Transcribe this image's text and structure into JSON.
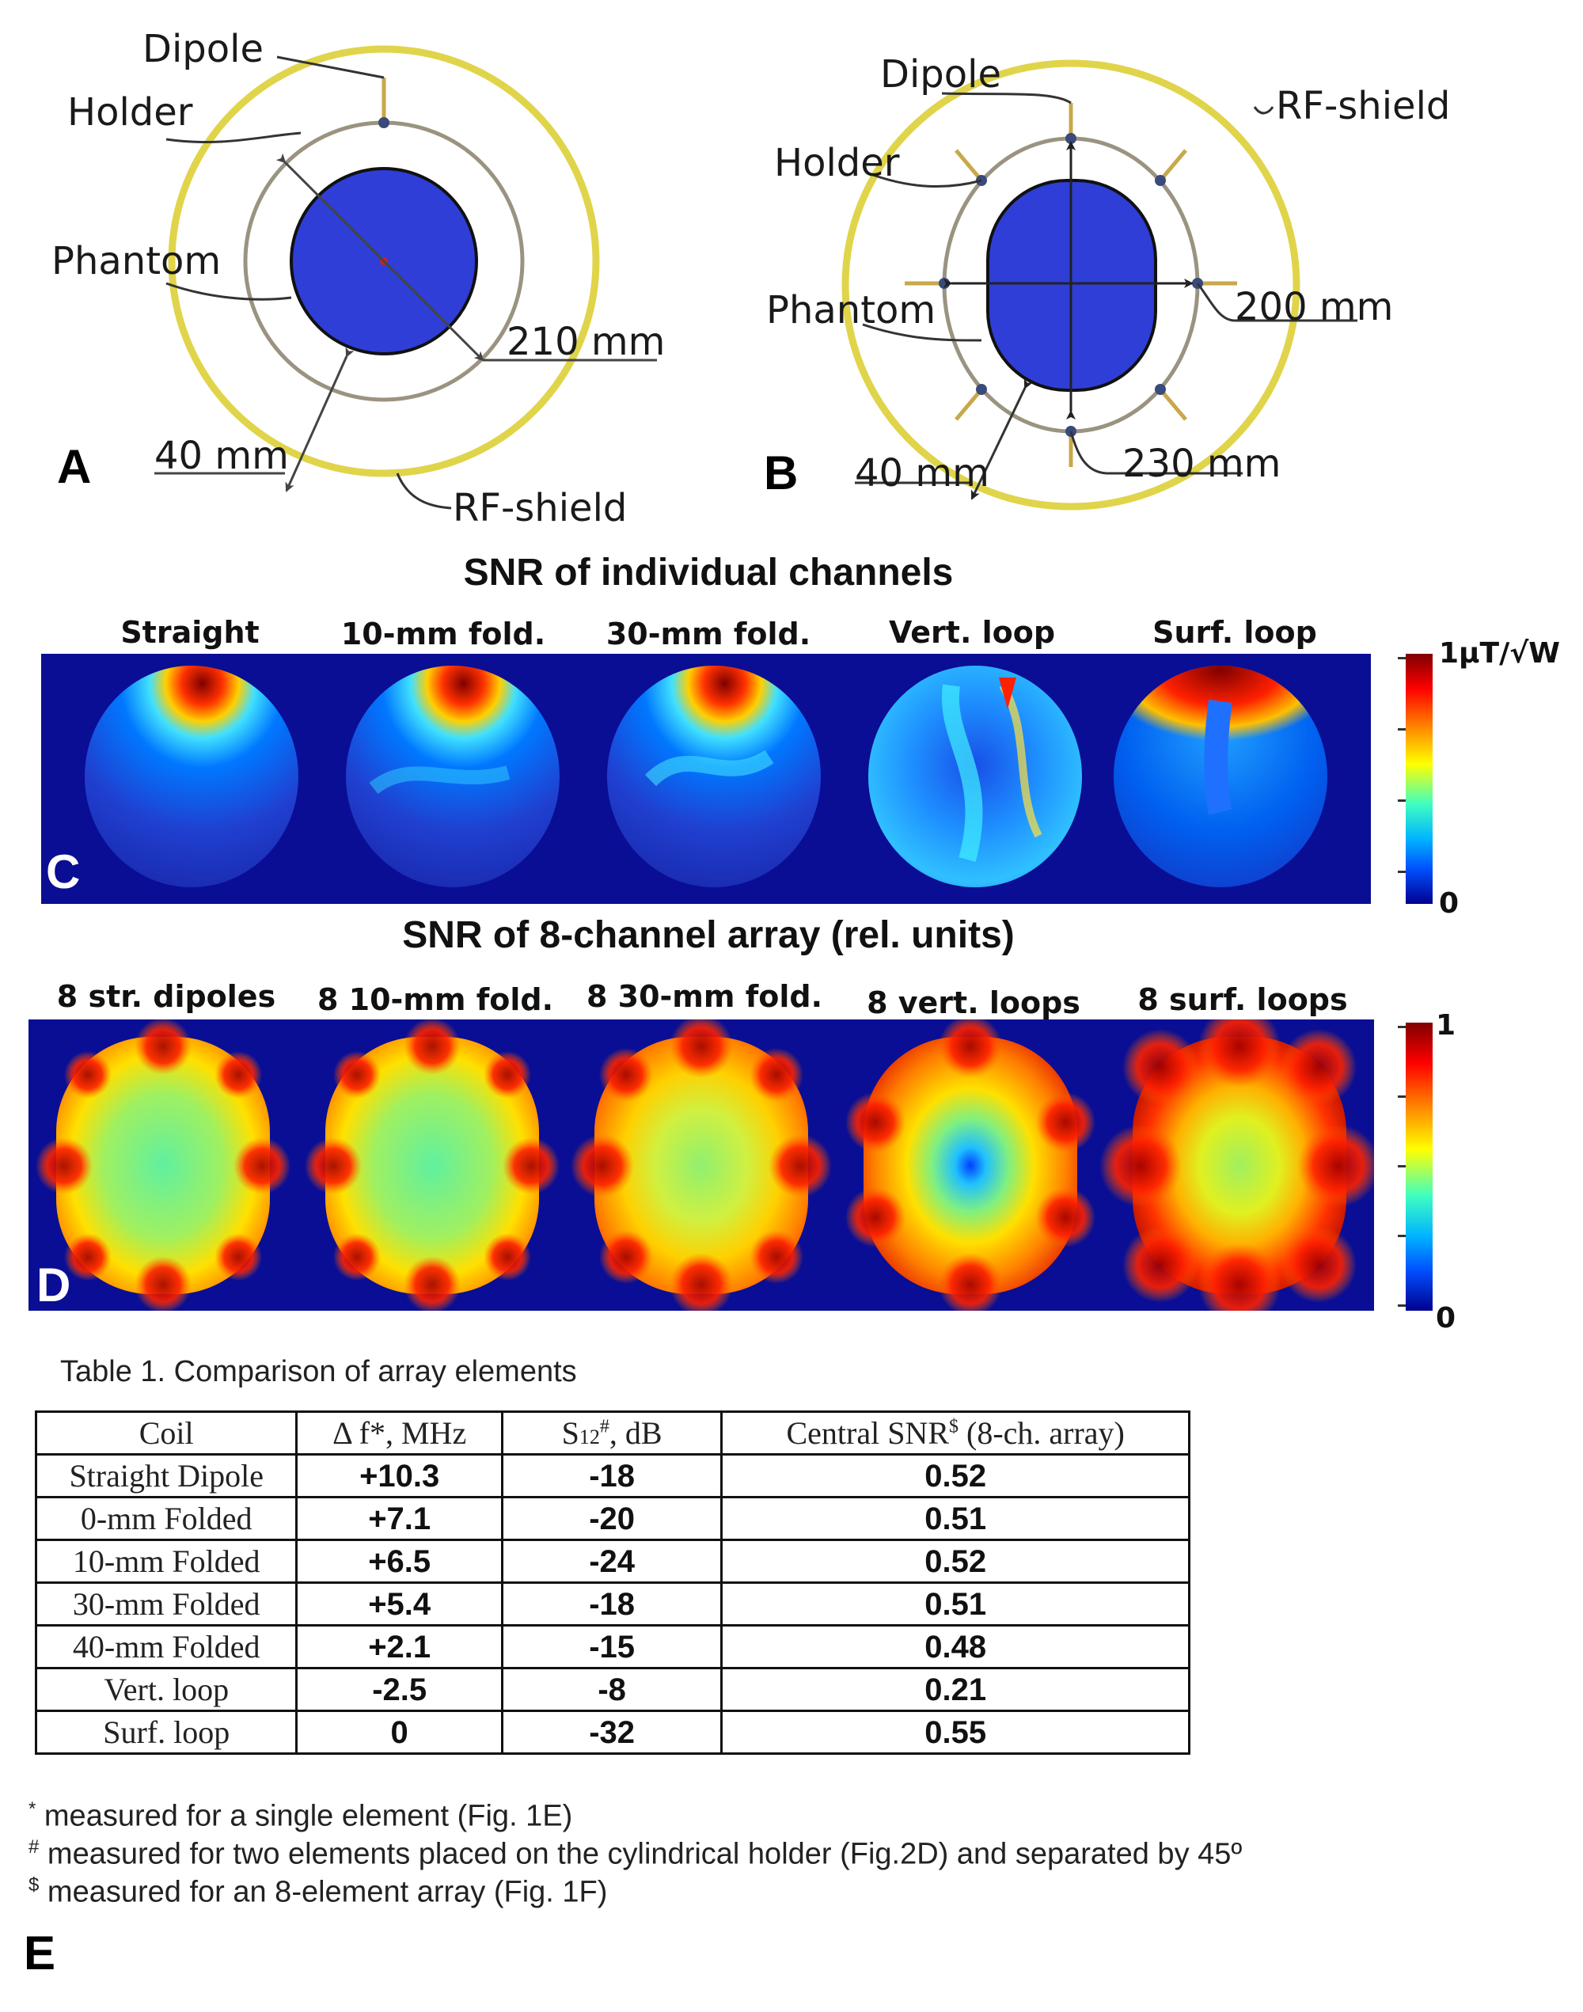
{
  "panel_a": {
    "letter": "A",
    "dipole": "Dipole",
    "holder": "Holder",
    "phantom": "Phantom",
    "dim_diameter": "210 mm",
    "dim_gap": "40 mm",
    "rf_shield": "RF-shield"
  },
  "panel_b": {
    "letter": "B",
    "dipole": "Dipole",
    "rf_shield": "RF-shield",
    "holder": "Holder",
    "phantom": "Phantom",
    "dim_width": "200 mm",
    "dim_height": "230 mm",
    "dim_gap": "40 mm"
  },
  "panel_c": {
    "title": "SNR of individual channels",
    "letter": "C",
    "maps": [
      "Straight",
      "10-mm fold.",
      "30-mm fold.",
      "Vert. loop",
      "Surf. loop"
    ],
    "cbar_max": "1μT/√W",
    "cbar_min": "0"
  },
  "panel_d": {
    "title": "SNR of 8-channel array (rel. units)",
    "letter": "D",
    "maps": [
      "8 str. dipoles",
      "8 10-mm fold.",
      "8 30-mm fold.",
      "8 vert. loops",
      "8 surf. loops"
    ],
    "cbar_max": "1",
    "cbar_min": "0"
  },
  "table": {
    "caption": "Table 1. Comparison of array elements",
    "headers": {
      "coil": "Coil",
      "df_pre": "Δ f*, MHz",
      "s12_main": "S",
      "s12_sub": "12",
      "s12_sup": "#",
      "s12_post": ", dB",
      "snr_pre": "Central SNR",
      "snr_sup": "$",
      "snr_post": " (8-ch. array)"
    },
    "rows": [
      {
        "coil": "Straight Dipole",
        "df": "+10.3",
        "s12": "-18",
        "snr": "0.52"
      },
      {
        "coil": "0-mm Folded",
        "df": "+7.1",
        "s12": "-20",
        "snr": "0.51"
      },
      {
        "coil": "10-mm Folded",
        "df": "+6.5",
        "s12": "-24",
        "snr": "0.52"
      },
      {
        "coil": "30-mm Folded",
        "df": "+5.4",
        "s12": "-18",
        "snr": "0.51"
      },
      {
        "coil": "40-mm Folded",
        "df": "+2.1",
        "s12": "-15",
        "snr": "0.48"
      },
      {
        "coil": "Vert. loop",
        "df": "-2.5",
        "s12": "-8",
        "snr": "0.21"
      },
      {
        "coil": "Surf. loop",
        "df": "0",
        "s12": "-32",
        "snr": "0.55"
      }
    ]
  },
  "footnotes": {
    "f1_mark": "*",
    "f1": " measured for a single element (Fig. 1E)",
    "f2_mark": "#",
    "f2": " measured for two elements placed on the cylindrical holder (Fig.2D) and separated by 45º",
    "f3_mark": "$",
    "f3": " measured for an 8-element array (Fig. 1F)"
  },
  "panel_e": {
    "letter": "E"
  }
}
